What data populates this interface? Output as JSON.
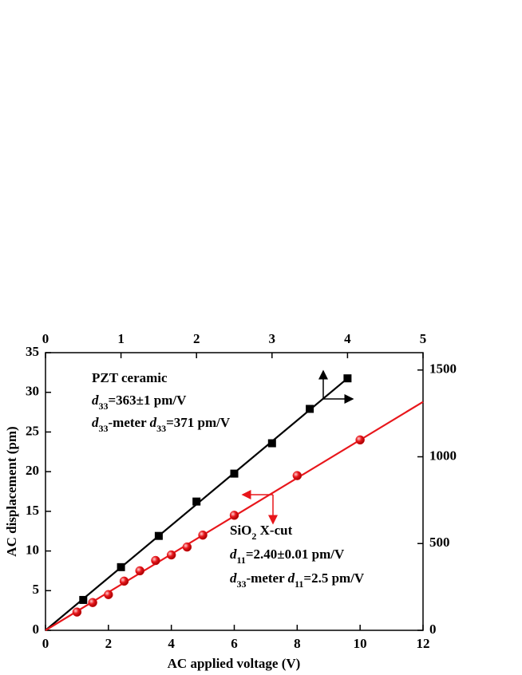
{
  "chart_data": {
    "type": "scatter",
    "xlabel": "AC applied voltage (V)",
    "ylabel": "AC displacement (pm)",
    "xlim": [
      0,
      12
    ],
    "xticks": [
      0,
      2,
      4,
      6,
      8,
      10,
      12
    ],
    "ylim": [
      0,
      35
    ],
    "yticks": [
      0,
      5,
      10,
      15,
      20,
      25,
      30,
      35
    ],
    "x2lim": [
      0,
      5
    ],
    "x2ticks": [
      0,
      1,
      2,
      3,
      4,
      5
    ],
    "y2lim": [
      0,
      1600
    ],
    "y2ticks": [
      0,
      500,
      1000,
      1500
    ],
    "series": [
      {
        "type": "line",
        "color": "#000000",
        "xaxis": "x2",
        "axis": "y2",
        "x": [
          0,
          4
        ],
        "values": [
          0,
          1452
        ]
      },
      {
        "type": "line",
        "color": "#e8161b",
        "x": [
          0,
          12
        ],
        "values": [
          0,
          28.8
        ]
      },
      {
        "type": "scatter",
        "marker": "square",
        "color": "#000000",
        "xaxis": "x2",
        "axis": "y2",
        "x": [
          0.5,
          1.0,
          1.5,
          2.0,
          2.5,
          3.0,
          3.5,
          4.0
        ],
        "values": [
          175,
          364,
          544,
          742,
          903,
          1078,
          1276,
          1452
        ]
      },
      {
        "type": "scatter",
        "marker": "circle",
        "color": "#e8161b",
        "x": [
          1,
          1.5,
          2,
          2.5,
          3,
          3.5,
          4,
          4.5,
          5,
          6,
          8,
          10
        ],
        "values": [
          2.3,
          3.5,
          4.5,
          6.2,
          7.5,
          8.8,
          9.5,
          10.5,
          12,
          14.5,
          19.5,
          24
        ]
      }
    ],
    "annotations": [
      {
        "runs": [
          {
            "text": "PZT ceramic"
          }
        ]
      },
      {
        "runs": [
          {
            "text": "d",
            "italic": true
          },
          {
            "text": "33",
            "sub": true
          },
          {
            "text": "=363±1 pm/V"
          }
        ]
      },
      {
        "runs": [
          {
            "text": "d",
            "italic": true
          },
          {
            "text": "33",
            "sub": true
          },
          {
            "text": "-meter "
          },
          {
            "text": "d",
            "italic": true
          },
          {
            "text": "33",
            "sub": true
          },
          {
            "text": "=371 pm/V"
          }
        ]
      },
      {
        "runs": [
          {
            "text": "SiO"
          },
          {
            "text": "2",
            "sub": true
          },
          {
            "text": " X-cut"
          }
        ]
      },
      {
        "runs": [
          {
            "text": "d",
            "italic": true
          },
          {
            "text": "11",
            "sub": true
          },
          {
            "text": "=2.40±0.01 pm/V"
          }
        ]
      },
      {
        "runs": [
          {
            "text": "d",
            "italic": true
          },
          {
            "text": "33",
            "sub": true
          },
          {
            "text": "-meter "
          },
          {
            "text": "d",
            "italic": true
          },
          {
            "text": "11",
            "sub": true
          },
          {
            "text": "=2.5 pm/V"
          }
        ]
      }
    ]
  }
}
